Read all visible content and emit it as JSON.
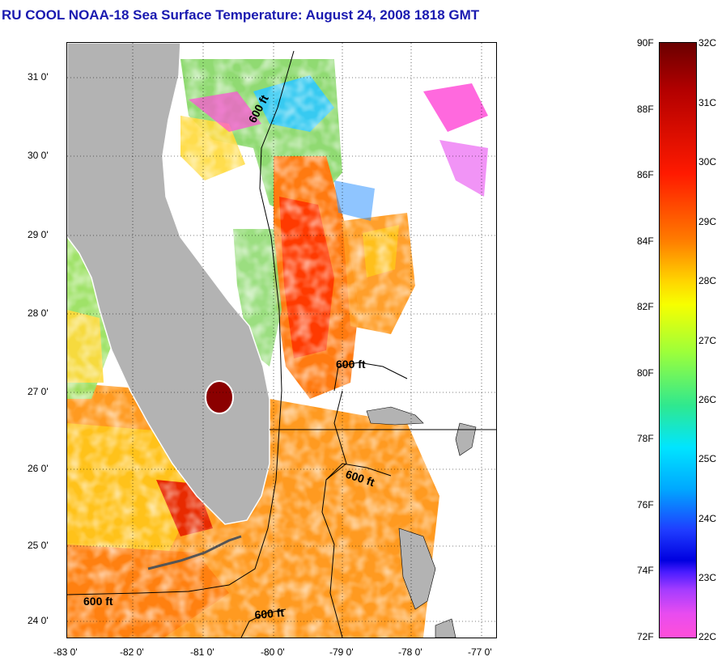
{
  "title": "RU COOL  NOAA-18  Sea Surface Temperature:  August 24, 2008 1818 GMT",
  "map": {
    "lat_labels": [
      "31 0'",
      "30 0'",
      "29 0'",
      "28 0'",
      "27 0'",
      "26 0'",
      "25 0'",
      "24 0'"
    ],
    "lon_labels": [
      "-83 0'",
      "-82 0'",
      "-81 0'",
      "-80 0'",
      "-79 0'",
      "-78 0'",
      "-77 0'"
    ],
    "contour_labels": [
      "600 ft",
      "600 ft",
      "600 ft",
      "600 ft",
      "600 ft"
    ],
    "colors": {
      "land": "#b3b3b3",
      "no_data": "#ffffff",
      "warm_core": "#ff3300",
      "warm": "#ff8800",
      "mid": "#ffd000",
      "cool": "#7fff5a",
      "cold": "#00d0ff",
      "lake": "#8b0000"
    }
  },
  "colorbar": {
    "f_labels": [
      "90F",
      "88F",
      "86F",
      "84F",
      "82F",
      "80F",
      "78F",
      "76F",
      "74F",
      "72F"
    ],
    "c_labels": [
      "32C",
      "31C",
      "30C",
      "29C",
      "28C",
      "27C",
      "26C",
      "25C",
      "24C",
      "23C",
      "22C"
    ]
  }
}
